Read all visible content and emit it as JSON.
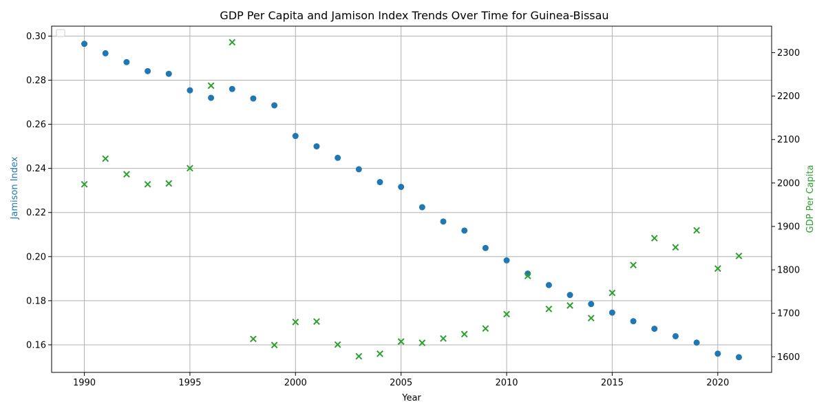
{
  "chart_data": {
    "type": "scatter",
    "title": "GDP Per Capita and Jamison Index Trends Over Time for Guinea-Bissau",
    "xlabel": "Year",
    "ylabel_left": "Jamison Index",
    "ylabel_right": "GDP Per Capita",
    "xlim": [
      1988.45,
      2022.55
    ],
    "ylim_left": [
      0.1475,
      0.3045
    ],
    "ylim_right": [
      1564,
      2361
    ],
    "x_ticks": [
      1990,
      1995,
      2000,
      2005,
      2010,
      2015,
      2020
    ],
    "y_ticks_left": [
      0.16,
      0.18,
      0.2,
      0.22,
      0.24,
      0.26,
      0.28,
      0.3
    ],
    "y_ticks_left_labels": [
      "0.16",
      "0.18",
      "0.20",
      "0.22",
      "0.24",
      "0.26",
      "0.28",
      "0.30"
    ],
    "y_ticks_right": [
      1600,
      1700,
      1800,
      1900,
      2000,
      2100,
      2200,
      2300
    ],
    "grid": true,
    "legend": "top-left (empty)",
    "colors": {
      "jamison": "#1f77b4",
      "gdp": "#2ca02c"
    },
    "series": [
      {
        "axis": "left",
        "marker": "circle",
        "x": [
          1990,
          1991,
          1992,
          1993,
          1994,
          1995,
          1996,
          1997,
          1998,
          1999,
          2000,
          2001,
          2002,
          2003,
          2004,
          2005,
          2006,
          2007,
          2008,
          2009,
          2010,
          2011,
          2012,
          2013,
          2014,
          2015,
          2016,
          2017,
          2018,
          2019,
          2020,
          2021
        ],
        "values": [
          0.2965,
          0.2922,
          0.2882,
          0.2841,
          0.2829,
          0.2754,
          0.272,
          0.276,
          0.2717,
          0.2686,
          0.2547,
          0.25,
          0.2448,
          0.2396,
          0.2338,
          0.2316,
          0.2224,
          0.2159,
          0.2118,
          0.2039,
          0.1983,
          0.1923,
          0.1871,
          0.1826,
          0.1785,
          0.1746,
          0.1707,
          0.1673,
          0.1639,
          0.161,
          0.156,
          0.1544
        ]
      },
      {
        "axis": "right",
        "marker": "x",
        "x": [
          1990,
          1991,
          1992,
          1993,
          1994,
          1995,
          1996,
          1997,
          1998,
          1999,
          2000,
          2001,
          2002,
          2003,
          2004,
          2005,
          2006,
          2007,
          2008,
          2009,
          2010,
          2011,
          2012,
          2013,
          2014,
          2015,
          2016,
          2017,
          2018,
          2019,
          2020,
          2021
        ],
        "values": [
          1997,
          2056,
          2020,
          1997,
          1999,
          2034,
          2224,
          2324,
          1641,
          1627,
          1680,
          1681,
          1628,
          1601,
          1607,
          1635,
          1632,
          1642,
          1652,
          1665,
          1698,
          1786,
          1710,
          1718,
          1689,
          1747,
          1811,
          1873,
          1852,
          1891,
          1803,
          1832
        ]
      }
    ]
  }
}
